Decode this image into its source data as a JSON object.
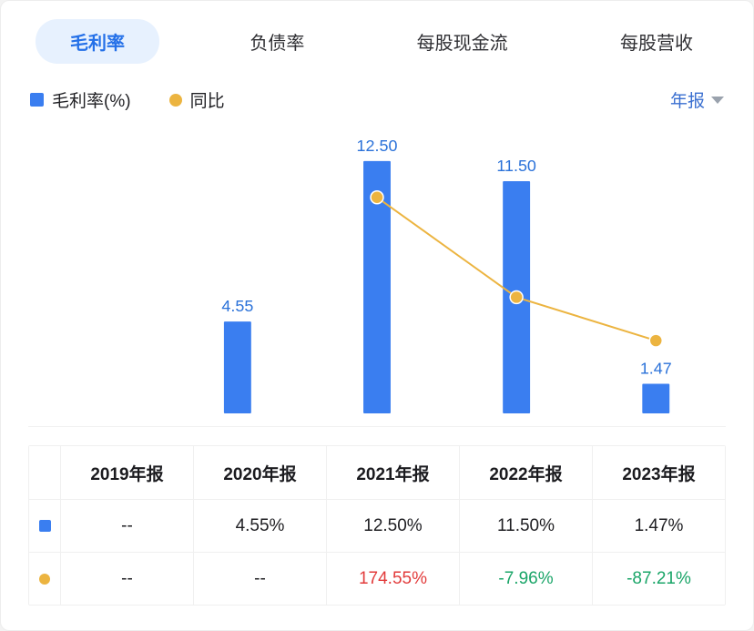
{
  "tabs": [
    {
      "label": "毛利率",
      "active": true
    },
    {
      "label": "负债率",
      "active": false
    },
    {
      "label": "每股现金流",
      "active": false
    },
    {
      "label": "每股营收",
      "active": false
    }
  ],
  "legend": {
    "series1_label": "毛利率(%)",
    "series2_label": "同比"
  },
  "period_selector": {
    "label": "年报",
    "icon": "chevron-down-icon"
  },
  "colors": {
    "bar": "#3a7ef0",
    "line": "#ecb440",
    "accent_blue": "#2b72d9",
    "tab_active_bg": "#e7f1fe",
    "red": "#e23b3b",
    "green": "#1aa568",
    "muted": "#9aa2ad"
  },
  "chart_data": {
    "type": "bar",
    "categories": [
      "2019年报",
      "2020年报",
      "2021年报",
      "2022年报",
      "2023年报"
    ],
    "series": [
      {
        "name": "毛利率(%)",
        "type": "bar",
        "values": [
          null,
          4.55,
          12.5,
          11.5,
          1.47
        ],
        "labels": [
          "",
          "4.55",
          "12.50",
          "11.50",
          "1.47"
        ],
        "color": "#3a7ef0"
      },
      {
        "name": "同比",
        "type": "line",
        "values": [
          null,
          null,
          174.55,
          -7.96,
          -87.21
        ],
        "color": "#ecb440"
      }
    ],
    "title": "",
    "xlabel": "",
    "ylabel": "",
    "ylim_bar": [
      0,
      13.9
    ],
    "grid": false,
    "legend_position": "top-left"
  },
  "table": {
    "headers": [
      "",
      "2019年报",
      "2020年报",
      "2021年报",
      "2022年报",
      "2023年报"
    ],
    "rows": [
      {
        "icon": "bar-series-swatch",
        "cells": [
          "--",
          "4.55%",
          "12.50%",
          "11.50%",
          "1.47%"
        ],
        "cell_colors": [
          "",
          "",
          "",
          "",
          ""
        ]
      },
      {
        "icon": "line-series-swatch",
        "cells": [
          "--",
          "--",
          "174.55%",
          "-7.96%",
          "-87.21%"
        ],
        "cell_colors": [
          "",
          "",
          "red",
          "green",
          "green"
        ]
      }
    ]
  }
}
